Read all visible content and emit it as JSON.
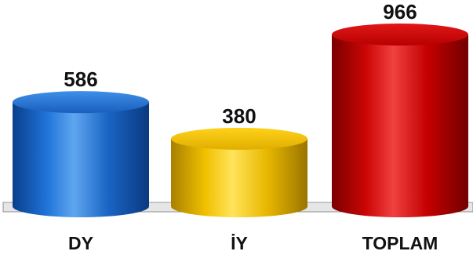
{
  "chart_data": {
    "type": "bar",
    "categories": [
      "DY",
      "İY",
      "TOPLAM"
    ],
    "values": [
      586,
      380,
      966
    ],
    "series": [
      {
        "values": [
          586,
          380,
          966
        ]
      }
    ],
    "colors": [
      "#1f6fd1",
      "#f2c500",
      "#d40000"
    ],
    "data_labels": [
      "586",
      "380",
      "966"
    ],
    "title": "",
    "xlabel": "",
    "ylabel": "",
    "ylim": [
      0,
      1000
    ],
    "grid": false,
    "legend": "none",
    "style": "3d-cylinder"
  }
}
